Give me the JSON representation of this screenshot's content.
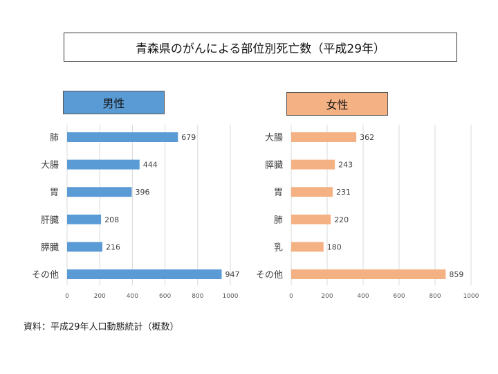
{
  "title": "青森県のがんによる部位別死亡数（平成29年）",
  "source": "資料：平成29年人口動態統計（概数）",
  "chart_data": [
    {
      "type": "bar",
      "orientation": "horizontal",
      "panel_label": "男性",
      "color": "#5b9bd5",
      "categories": [
        "肺",
        "大腸",
        "胃",
        "肝臓",
        "膵臓",
        "その他"
      ],
      "values": [
        679,
        444,
        396,
        208,
        216,
        947
      ],
      "xlim": [
        0,
        1000
      ],
      "xticks": [
        0,
        200,
        400,
        600,
        800,
        1000
      ],
      "grid": true
    },
    {
      "type": "bar",
      "orientation": "horizontal",
      "panel_label": "女性",
      "color": "#f4b183",
      "categories": [
        "大腸",
        "膵臓",
        "胃",
        "肺",
        "乳",
        "その他"
      ],
      "values": [
        362,
        243,
        231,
        220,
        180,
        859
      ],
      "xlim": [
        0,
        1000
      ],
      "xticks": [
        0,
        200,
        400,
        600,
        800,
        1000
      ],
      "grid": true
    }
  ]
}
